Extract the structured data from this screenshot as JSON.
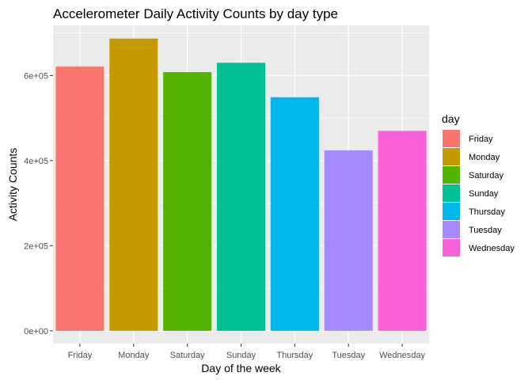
{
  "chart_data": {
    "type": "bar",
    "title": "Accelerometer Daily Activity Counts by day type",
    "xlabel": "Day of the week",
    "ylabel": "Activity Counts",
    "categories": [
      "Friday",
      "Monday",
      "Saturday",
      "Sunday",
      "Thursday",
      "Tuesday",
      "Wednesday"
    ],
    "values": [
      621000,
      687000,
      608000,
      630000,
      549000,
      424000,
      470000
    ],
    "colors": [
      "#F8766D",
      "#C49A00",
      "#53B400",
      "#00C094",
      "#00B6EB",
      "#A58AFF",
      "#FB61D7"
    ],
    "ylim": [
      -30000,
      718000
    ],
    "yticks": [
      0,
      200000,
      400000,
      600000
    ],
    "ytick_labels": [
      "0e+00",
      "2e+05",
      "4e+05",
      "6e+05"
    ],
    "grid": true,
    "legend": {
      "title": "day",
      "position": "right",
      "entries": [
        "Friday",
        "Monday",
        "Saturday",
        "Sunday",
        "Thursday",
        "Tuesday",
        "Wednesday"
      ]
    },
    "panel_background": "#EBEBEB",
    "grid_color": "#FFFFFF"
  }
}
